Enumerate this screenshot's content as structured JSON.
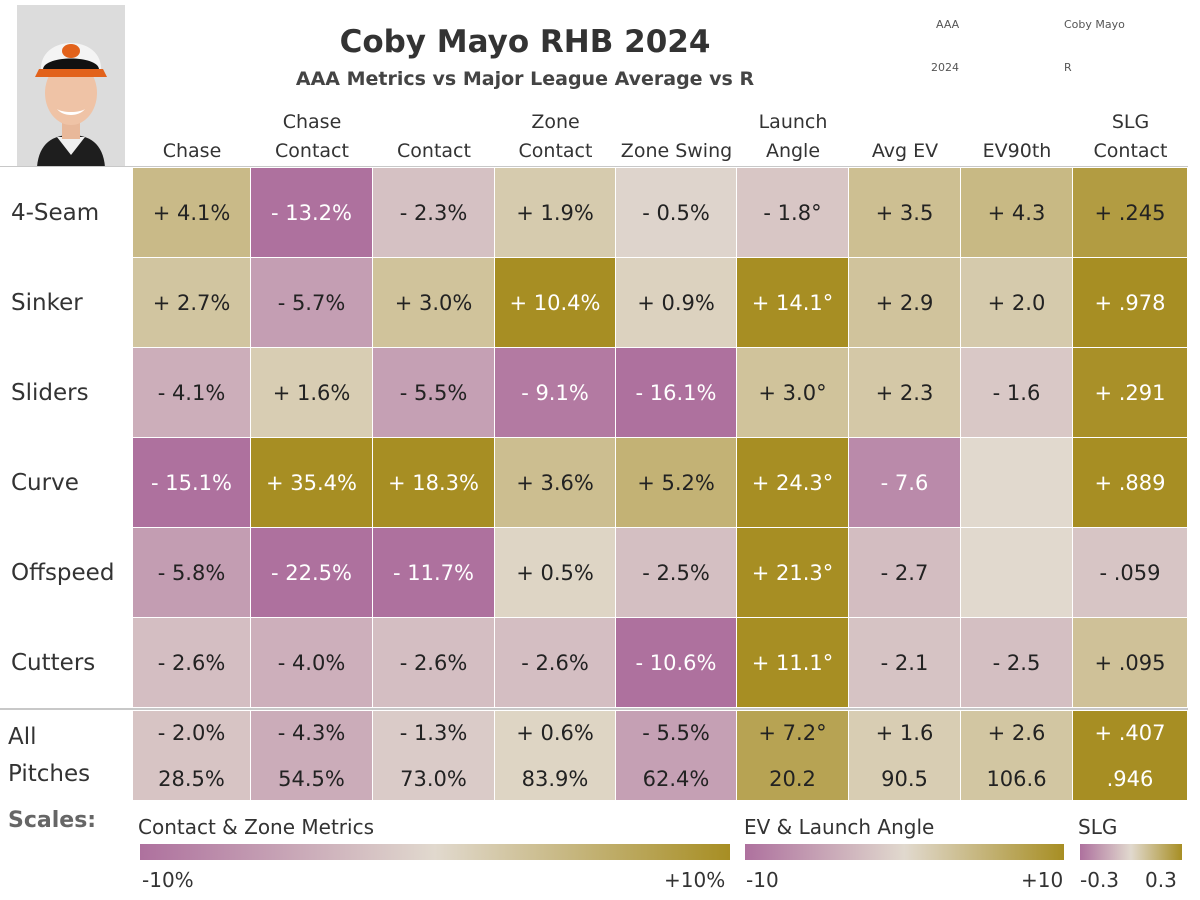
{
  "title": "Coby Mayo RHB 2024",
  "subtitle": "AAA Metrics vs Major League Average vs R",
  "meta": {
    "level": "AAA",
    "player": "Coby Mayo",
    "year": "2024",
    "hand": "R"
  },
  "colors": {
    "neg": "#ae719e",
    "mid": "#e1d9ce",
    "pos": "#a78e23"
  },
  "chart_data": {
    "type": "heatmap",
    "title": "Coby Mayo RHB 2024",
    "subtitle": "AAA Metrics vs Major League Average vs R",
    "columns": [
      {
        "key": "chase",
        "label1": "",
        "label2": "Chase",
        "scale": "pct"
      },
      {
        "key": "chase_contact",
        "label1": "Chase",
        "label2": "Contact",
        "scale": "pct"
      },
      {
        "key": "contact",
        "label1": "",
        "label2": "Contact",
        "scale": "pct"
      },
      {
        "key": "zone_contact",
        "label1": "Zone",
        "label2": "Contact",
        "scale": "pct"
      },
      {
        "key": "zone_swing",
        "label1": "",
        "label2": "Zone Swing",
        "scale": "pct"
      },
      {
        "key": "launch_angle",
        "label1": "Launch",
        "label2": "Angle",
        "scale": "ev"
      },
      {
        "key": "avg_ev",
        "label1": "",
        "label2": "Avg EV",
        "scale": "ev"
      },
      {
        "key": "ev90",
        "label1": "",
        "label2": "EV90th",
        "scale": "ev"
      },
      {
        "key": "slg",
        "label1": "SLG",
        "label2": "Contact",
        "scale": "slg"
      }
    ],
    "rows": [
      {
        "label": "4-Seam",
        "values": [
          4.1,
          -13.2,
          -2.3,
          1.9,
          -0.5,
          -1.8,
          3.5,
          4.3,
          0.245
        ],
        "text": [
          "+ 4.1%",
          "- 13.2%",
          "- 2.3%",
          "+ 1.9%",
          "- 0.5%",
          "- 1.8°",
          "+ 3.5",
          "+ 4.3",
          "+ .245"
        ]
      },
      {
        "label": "Sinker",
        "values": [
          2.7,
          -5.7,
          3.0,
          10.4,
          0.9,
          14.1,
          2.9,
          2.0,
          0.978
        ],
        "text": [
          "+ 2.7%",
          "- 5.7%",
          "+ 3.0%",
          "+ 10.4%",
          "+ 0.9%",
          "+ 14.1°",
          "+ 2.9",
          "+ 2.0",
          "+ .978"
        ]
      },
      {
        "label": "Sliders",
        "values": [
          -4.1,
          1.6,
          -5.5,
          -9.1,
          -16.1,
          3.0,
          2.3,
          -1.6,
          0.291
        ],
        "text": [
          "- 4.1%",
          "+ 1.6%",
          "- 5.5%",
          "- 9.1%",
          "- 16.1%",
          "+ 3.0°",
          "+ 2.3",
          "- 1.6",
          "+ .291"
        ]
      },
      {
        "label": "Curve",
        "values": [
          -15.1,
          35.4,
          18.3,
          3.6,
          5.2,
          24.3,
          -7.6,
          null,
          0.889
        ],
        "text": [
          "- 15.1%",
          "+ 35.4%",
          "+ 18.3%",
          "+ 3.6%",
          "+ 5.2%",
          "+ 24.3°",
          "- 7.6",
          "",
          "+ .889"
        ]
      },
      {
        "label": "Offspeed",
        "values": [
          -5.8,
          -22.5,
          -11.7,
          0.5,
          -2.5,
          21.3,
          -2.7,
          null,
          -0.059
        ],
        "text": [
          "- 5.8%",
          "- 22.5%",
          "- 11.7%",
          "+ 0.5%",
          "- 2.5%",
          "+ 21.3°",
          "- 2.7",
          "",
          "- .059"
        ]
      },
      {
        "label": "Cutters",
        "values": [
          -2.6,
          -4.0,
          -2.6,
          -2.6,
          -10.6,
          11.1,
          -2.1,
          -2.5,
          0.095
        ],
        "text": [
          "- 2.6%",
          "- 4.0%",
          "- 2.6%",
          "- 2.6%",
          "- 10.6%",
          "+ 11.1°",
          "- 2.1",
          "- 2.5",
          "+ .095"
        ]
      }
    ],
    "total": {
      "label_line1": "All",
      "label_line2": "Pitches",
      "values": [
        -2.0,
        -4.3,
        -1.3,
        0.6,
        -5.5,
        7.2,
        1.6,
        2.6,
        0.407
      ],
      "diff_text": [
        "- 2.0%",
        "- 4.3%",
        "- 1.3%",
        "+ 0.6%",
        "- 5.5%",
        "+ 7.2°",
        "+ 1.6",
        "+ 2.6",
        "+ .407"
      ],
      "actual_text": [
        "28.5%",
        "54.5%",
        "73.0%",
        "83.9%",
        "62.4%",
        "20.2",
        "90.5",
        "106.6",
        ".946"
      ]
    },
    "scales": {
      "title": "Scales:",
      "pct": {
        "label": "Contact & Zone Metrics",
        "min": -10,
        "max": 10,
        "min_label": "-10%",
        "max_label": "+10%"
      },
      "ev": {
        "label": "EV & Launch Angle",
        "min": -10,
        "max": 10,
        "min_label": "-10",
        "max_label": "+10"
      },
      "slg": {
        "label": "SLG",
        "min": -0.3,
        "max": 0.3,
        "min_label": "-0.3",
        "max_label": "0.3"
      }
    }
  }
}
